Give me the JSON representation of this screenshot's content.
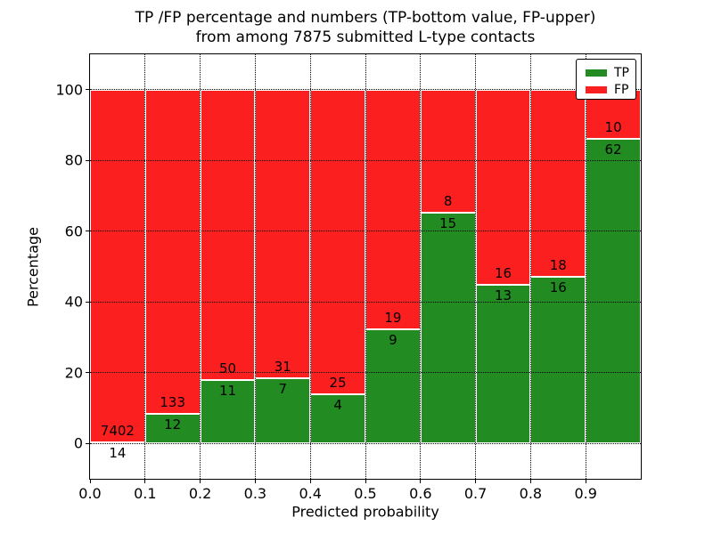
{
  "chart_data": {
    "type": "bar",
    "stacked": true,
    "title_line1": "TP /FP percentage and numbers (TP-bottom value, FP-upper)",
    "title_line2": "from among 7875 submitted L-type contacts",
    "xlabel": "Predicted probability",
    "ylabel": "Percentage",
    "xlim": [
      0.0,
      1.0
    ],
    "ylim": [
      -10,
      110
    ],
    "xticks": [
      "0.0",
      "0.1",
      "0.2",
      "0.3",
      "0.4",
      "0.5",
      "0.6",
      "0.7",
      "0.8",
      "0.9"
    ],
    "yticks": [
      "0",
      "20",
      "40",
      "60",
      "80",
      "100"
    ],
    "grid": "dotted-black-over-bars",
    "legend_position": "upper-right",
    "colors": {
      "tp": "#228B22",
      "fp": "#FC1F1F",
      "bar_edge": "#FFFFFF"
    },
    "legend": [
      {
        "label": "TP",
        "color": "#228B22"
      },
      {
        "label": "FP",
        "color": "#FC1F1F"
      }
    ],
    "bins": [
      {
        "x0": 0.0,
        "x1": 0.1,
        "tp": 14,
        "fp": 7402,
        "tp_pct": 0.19
      },
      {
        "x0": 0.1,
        "x1": 0.2,
        "tp": 12,
        "fp": 133,
        "tp_pct": 8.28
      },
      {
        "x0": 0.2,
        "x1": 0.3,
        "tp": 11,
        "fp": 50,
        "tp_pct": 18.03
      },
      {
        "x0": 0.3,
        "x1": 0.4,
        "tp": 7,
        "fp": 31,
        "tp_pct": 18.42
      },
      {
        "x0": 0.4,
        "x1": 0.5,
        "tp": 4,
        "fp": 25,
        "tp_pct": 13.79
      },
      {
        "x0": 0.5,
        "x1": 0.6,
        "tp": 9,
        "fp": 19,
        "tp_pct": 32.14
      },
      {
        "x0": 0.6,
        "x1": 0.7,
        "tp": 15,
        "fp": 8,
        "tp_pct": 65.22
      },
      {
        "x0": 0.7,
        "x1": 0.8,
        "tp": 13,
        "fp": 16,
        "tp_pct": 44.83
      },
      {
        "x0": 0.8,
        "x1": 0.9,
        "tp": 16,
        "fp": 18,
        "tp_pct": 47.06
      },
      {
        "x0": 0.9,
        "x1": 1.0,
        "tp": 62,
        "fp": 10,
        "tp_pct": 86.11
      }
    ]
  }
}
